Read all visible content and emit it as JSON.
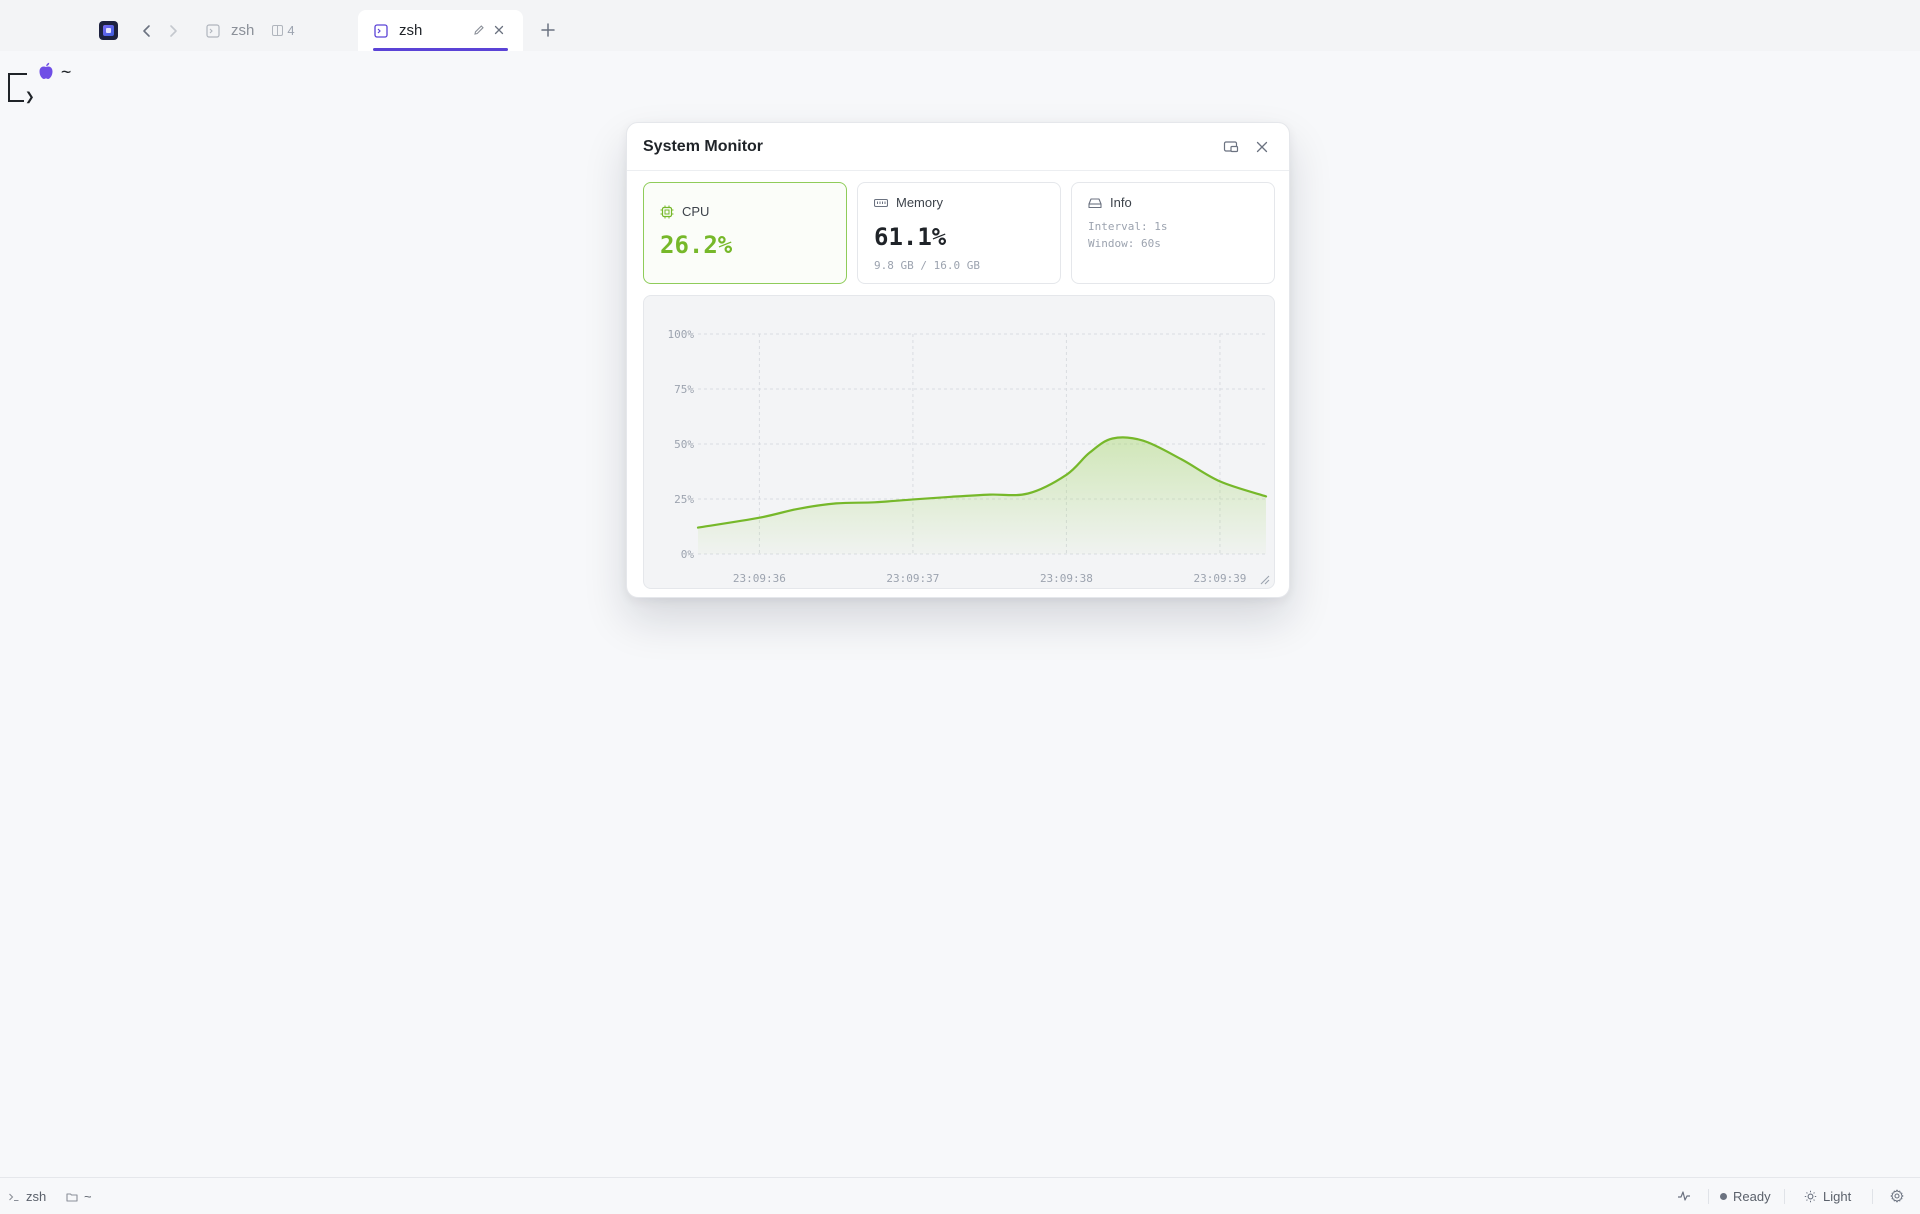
{
  "tabs": [
    {
      "label": "zsh",
      "pane_count": "4",
      "active": false
    },
    {
      "label": "zsh",
      "active": true
    }
  ],
  "terminal": {
    "cwd": "~"
  },
  "monitor": {
    "title": "System Monitor",
    "cpu": {
      "label": "CPU",
      "value": "26.2%"
    },
    "memory": {
      "label": "Memory",
      "value": "61.1%",
      "detail": "9.8 GB / 16.0 GB"
    },
    "info": {
      "label": "Info",
      "interval": "Interval: 1s",
      "window": "Window: 60s"
    }
  },
  "chart_data": {
    "type": "area",
    "x_ticks": [
      "23:09:36",
      "23:09:37",
      "23:09:38",
      "23:09:39"
    ],
    "y_ticks": [
      "0%",
      "25%",
      "50%",
      "75%",
      "100%"
    ],
    "ylim": [
      0,
      100
    ],
    "x": [
      35.6,
      36.0,
      36.25,
      36.5,
      36.75,
      37.0,
      37.25,
      37.5,
      37.75,
      38.0,
      38.15,
      38.3,
      38.5,
      38.75,
      39.0,
      39.3
    ],
    "series": [
      {
        "values": [
          12,
          16.5,
          20.5,
          23,
          23.5,
          24.8,
          26,
          27,
          27.5,
          36,
          46,
          52.5,
          51.5,
          43,
          33,
          26.2
        ],
        "color": "#76b82a"
      }
    ],
    "grid": true,
    "colors": {
      "line": "#76b82a",
      "fill": "#a5d66b",
      "grid": "#d9dce1",
      "tick": "#9ca3af"
    }
  },
  "statusbar": {
    "shell": "zsh",
    "cwd": "~",
    "status": "Ready",
    "theme": "Light"
  }
}
